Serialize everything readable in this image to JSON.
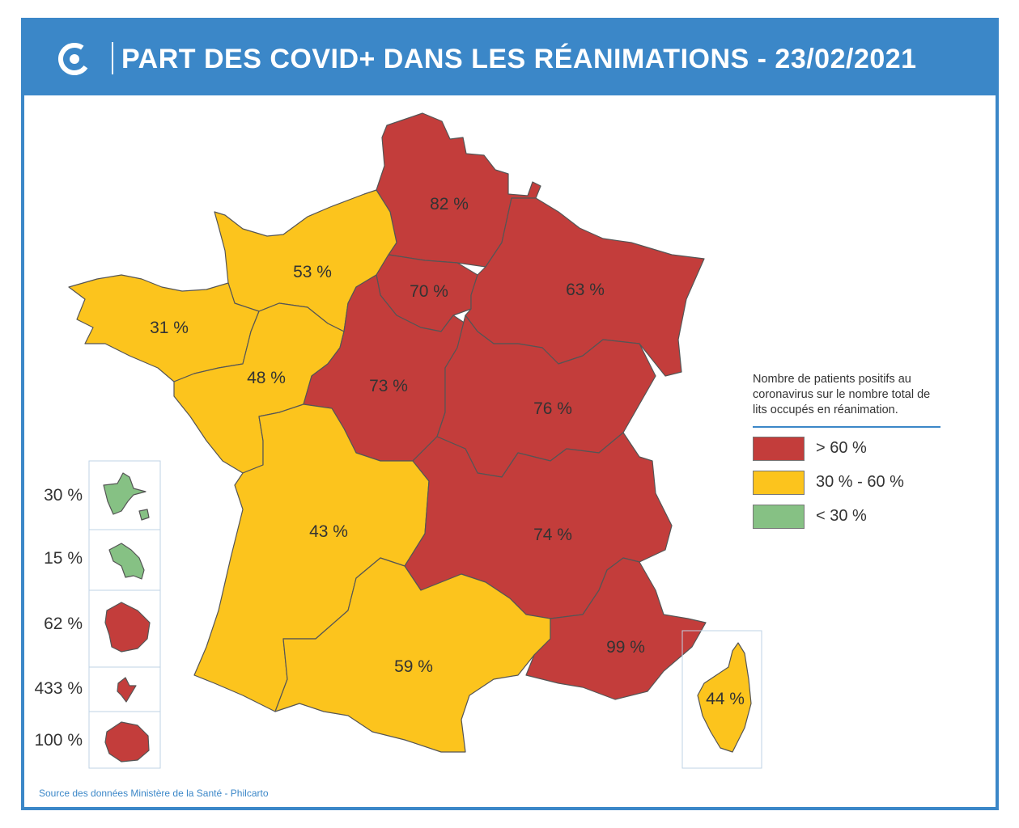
{
  "header": {
    "title": "PART DES COVID+ DANS LES RÉANIMATIONS - 23/02/2021",
    "logo_icon": "covidtracker-logo-icon"
  },
  "colors": {
    "red": "#c33d3b",
    "yellow": "#fcc41d",
    "green": "#86c184",
    "accent": "#3b87c8"
  },
  "regions": {
    "hauts_de_france": "82 %",
    "normandie": "53 %",
    "ile_de_france": "70 %",
    "grand_est": "63 %",
    "bretagne": "31 %",
    "pays_de_la_loire": "48 %",
    "centre_val_de_loire": "73 %",
    "bourgogne_franche_comte": "76 %",
    "nouvelle_aquitaine": "43 %",
    "auvergne_rhone_alpes": "74 %",
    "occitanie": "59 %",
    "provence_alpes_cote_dazur": "99 %",
    "corse": "44 %"
  },
  "overseas": [
    {
      "value": "30 %",
      "color": "green"
    },
    {
      "value": "15 %",
      "color": "green"
    },
    {
      "value": "62 %",
      "color": "red"
    },
    {
      "value": "433 %",
      "color": "red"
    },
    {
      "value": "100 %",
      "color": "red"
    }
  ],
  "legend": {
    "description": "Nombre de patients positifs au coronavirus sur le nombre total de lits occupés en réanimation.",
    "items": [
      {
        "label": "> 60 %",
        "color": "red"
      },
      {
        "label": "30 % - 60 %",
        "color": "yellow"
      },
      {
        "label": "< 30 %",
        "color": "green"
      }
    ]
  },
  "source": "Source des données Ministère de la Santé - Philcarto"
}
